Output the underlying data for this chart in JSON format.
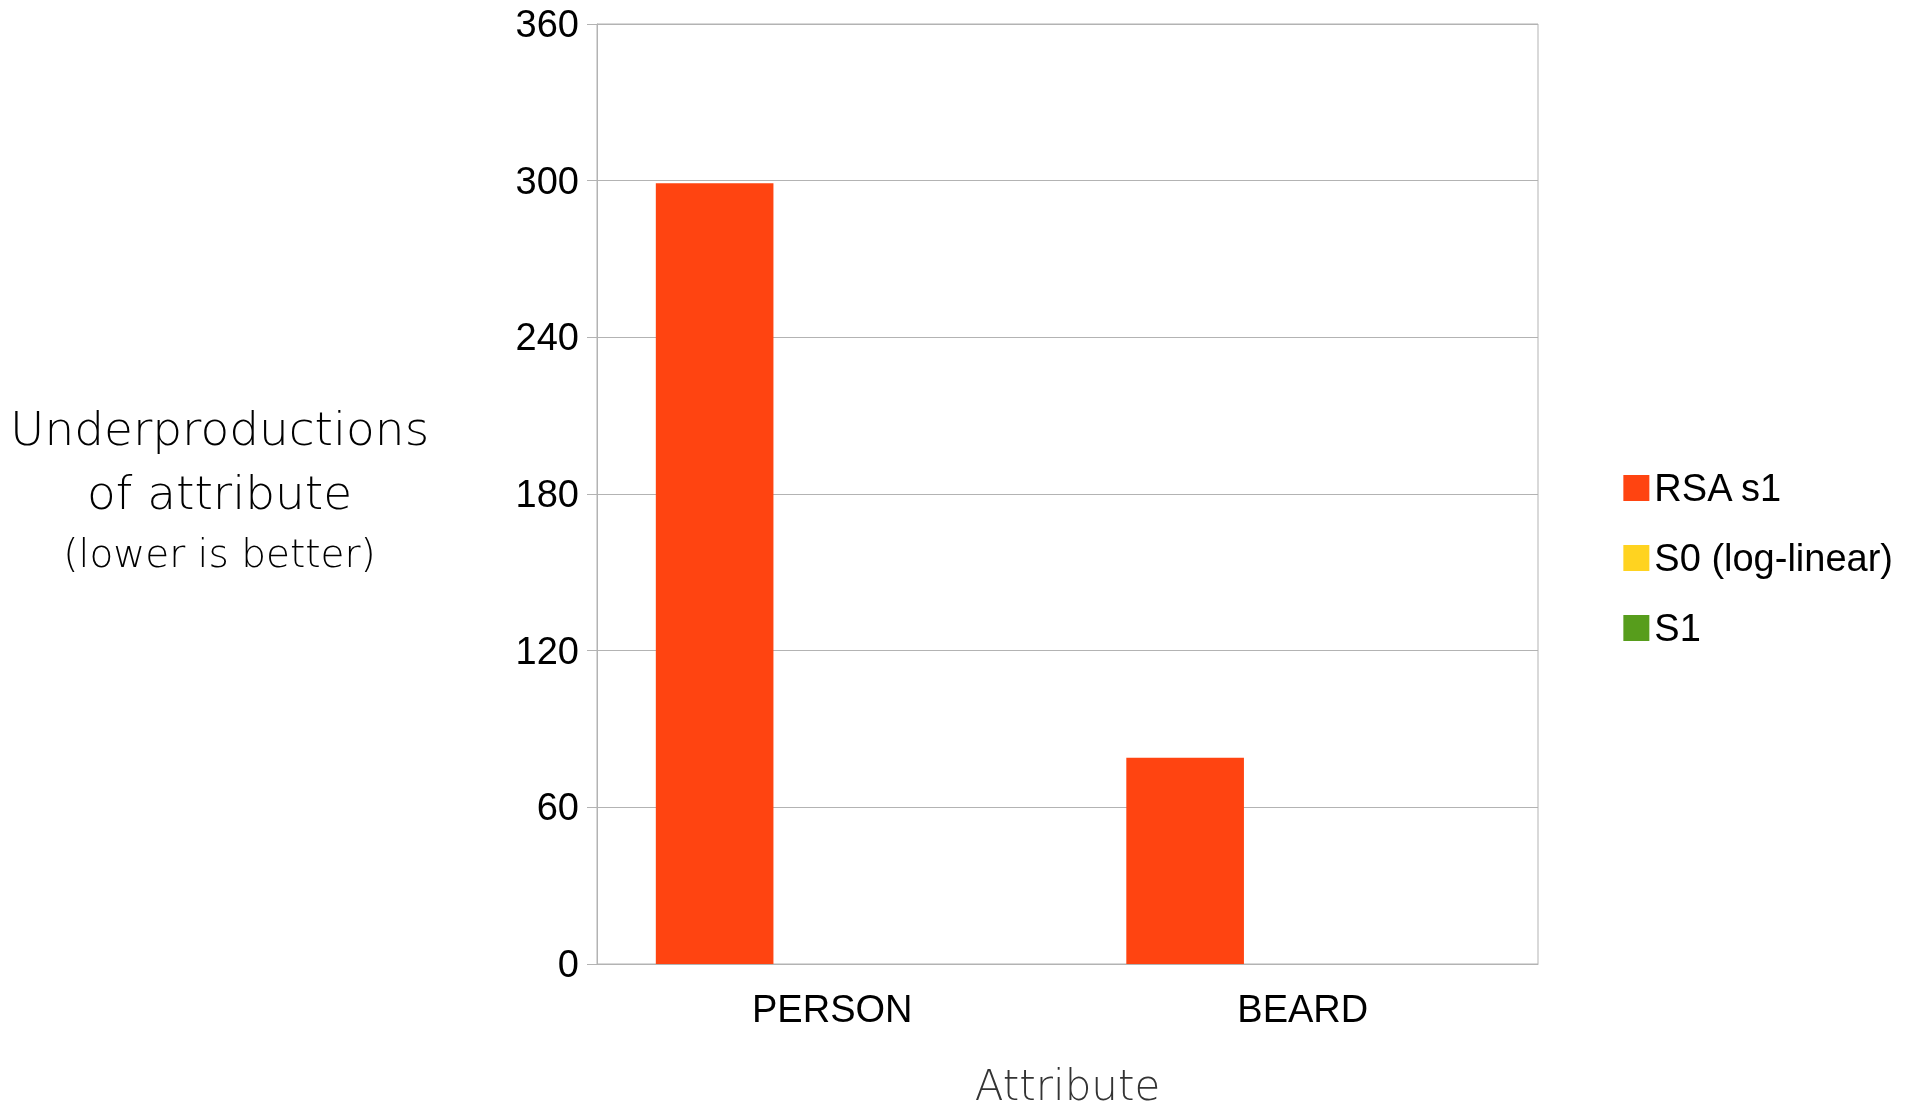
{
  "chart_data": {
    "type": "bar",
    "xlabel": "Attribute",
    "ylabel": "Underproductions\nof attribute\n(lower is better)",
    "categories": [
      "PERSON",
      "BEARD"
    ],
    "series": [
      {
        "name": "RSA s1",
        "color": "#ff4411",
        "values": [
          299,
          79
        ]
      },
      {
        "name": "S0 (log-linear)",
        "color": "#ffd320",
        "values": [
          null,
          null
        ]
      },
      {
        "name": "S1",
        "color": "#579d1c",
        "values": [
          null,
          null
        ]
      }
    ],
    "ylim": [
      0,
      360
    ],
    "yticks": [
      0,
      60,
      120,
      180,
      240,
      300,
      360
    ],
    "grid": "y",
    "legend": "right"
  }
}
